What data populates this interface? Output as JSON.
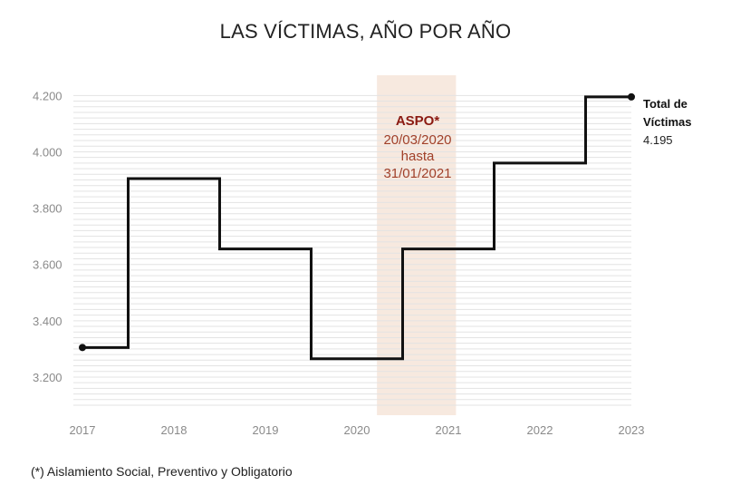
{
  "chart_data": {
    "type": "line",
    "step": true,
    "title": "LAS VÍCTIMAS, AÑO POR AÑO",
    "xlabel": "",
    "ylabel": "",
    "x_ticks": [
      "2017",
      "2018",
      "2019",
      "2020",
      "2021",
      "2022",
      "2023"
    ],
    "y_ticks": [
      "3.200",
      "3.400",
      "3.600",
      "3.800",
      "4.000",
      "4.200"
    ],
    "ylim": [
      3100,
      4230
    ],
    "grid": true,
    "series": [
      {
        "x": [
          "2017",
          "2018",
          "2019",
          "2020",
          "2021",
          "2022",
          "2023"
        ],
        "values": [
          3305,
          3905,
          3655,
          3265,
          3655,
          3960,
          4195
        ]
      }
    ],
    "highlight": {
      "from": "20/03/2020",
      "to": "31/01/2021",
      "title": "ASPO*",
      "line1": "20/03/2020",
      "line2": "hasta",
      "line3": "31/01/2021"
    },
    "end_label": {
      "line1": "Total de",
      "line2": "Víctimas",
      "value": "4.195"
    },
    "colors": {
      "line": "#111111",
      "highlight": "#f7e9df",
      "annotation_title": "#8b1a12",
      "annotation_text": "#a0402a",
      "grid": "#e3e3e3",
      "tick": "#8a8a8a"
    }
  },
  "footnote": "(*) Aislamiento Social, Preventivo y Obligatorio"
}
